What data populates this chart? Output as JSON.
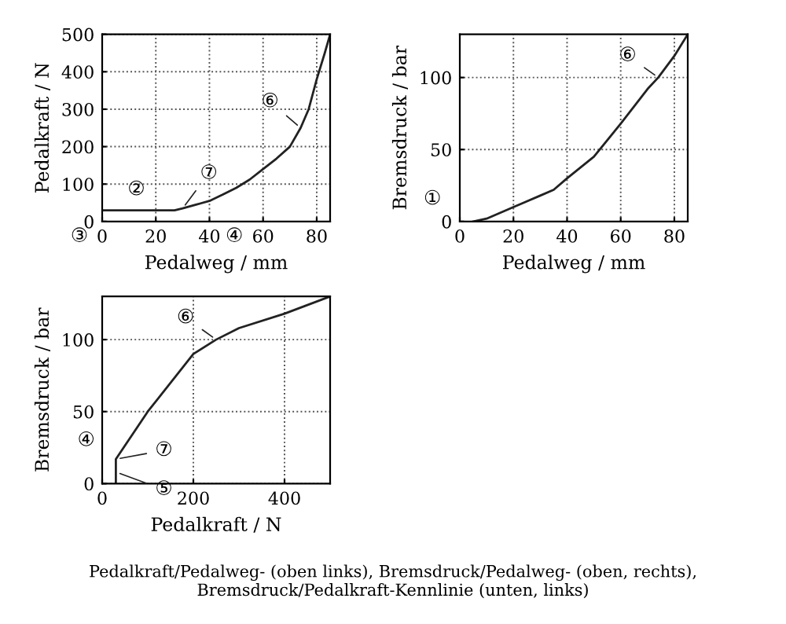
{
  "chart_data": [
    {
      "type": "line",
      "xlabel": "Pedalweg / mm",
      "ylabel": "Pedalkraft / N",
      "xlim": [
        0,
        85
      ],
      "ylim": [
        0,
        500
      ],
      "xticks": [
        0,
        20,
        40,
        60,
        80
      ],
      "yticks": [
        0,
        100,
        200,
        300,
        400,
        500
      ],
      "grid": true,
      "series": [
        {
          "color": "#222222",
          "x": [
            0,
            10,
            20,
            27,
            30,
            35,
            40,
            45,
            50,
            55,
            60,
            65,
            70,
            74,
            77,
            80,
            83,
            85
          ],
          "values": [
            30,
            30,
            30,
            30,
            35,
            45,
            55,
            72,
            90,
            112,
            140,
            168,
            200,
            250,
            300,
            380,
            450,
            500
          ]
        }
      ],
      "annotations": [
        {
          "text": "⑥",
          "x": 74,
          "y": 250
        },
        {
          "text": "⑦",
          "x": 30,
          "y": 35
        },
        "②",
        "③",
        "④"
      ]
    },
    {
      "type": "line",
      "xlabel": "Pedalweg / mm",
      "ylabel": "Bremsdruck / bar",
      "xlim": [
        0,
        85
      ],
      "ylim": [
        0,
        130
      ],
      "xticks": [
        0,
        20,
        40,
        60,
        80
      ],
      "yticks": [
        0,
        50,
        100
      ],
      "grid": true,
      "series": [
        {
          "color": "#222222",
          "x": [
            5,
            10,
            20,
            30,
            35,
            40,
            50,
            60,
            70,
            74,
            80,
            85
          ],
          "values": [
            0,
            2,
            10,
            18,
            22,
            30,
            45,
            68,
            92,
            100,
            115,
            130
          ]
        }
      ],
      "annotations": [
        {
          "text": "⑥",
          "x": 74,
          "y": 100
        },
        "①"
      ]
    },
    {
      "type": "line",
      "xlabel": "Pedalkraft / N",
      "ylabel": "Bremsdruck / bar",
      "xlim": [
        0,
        500
      ],
      "ylim": [
        0,
        130
      ],
      "xticks": [
        0,
        200,
        400
      ],
      "yticks": [
        0,
        50,
        100
      ],
      "grid": true,
      "series": [
        {
          "color": "#222222",
          "x": [
            30,
            30,
            100,
            200,
            250,
            300,
            400,
            500
          ],
          "values": [
            0,
            17,
            50,
            90,
            100,
            108,
            118,
            130
          ]
        }
      ],
      "annotations": [
        {
          "text": "⑥",
          "x": 250,
          "y": 100
        },
        {
          "text": "⑦",
          "x": 30,
          "y": 17
        },
        {
          "text": "⑤",
          "x": 30,
          "y": 8
        },
        "④",
        "Pedalkraft/Pedalweg- (oben links), Bremsdruck/Pedalweg- (oben, rechts), Bremsdruck/Pedalkraft-Kennlinie (unten, links)"
      ]
    }
  ]
}
